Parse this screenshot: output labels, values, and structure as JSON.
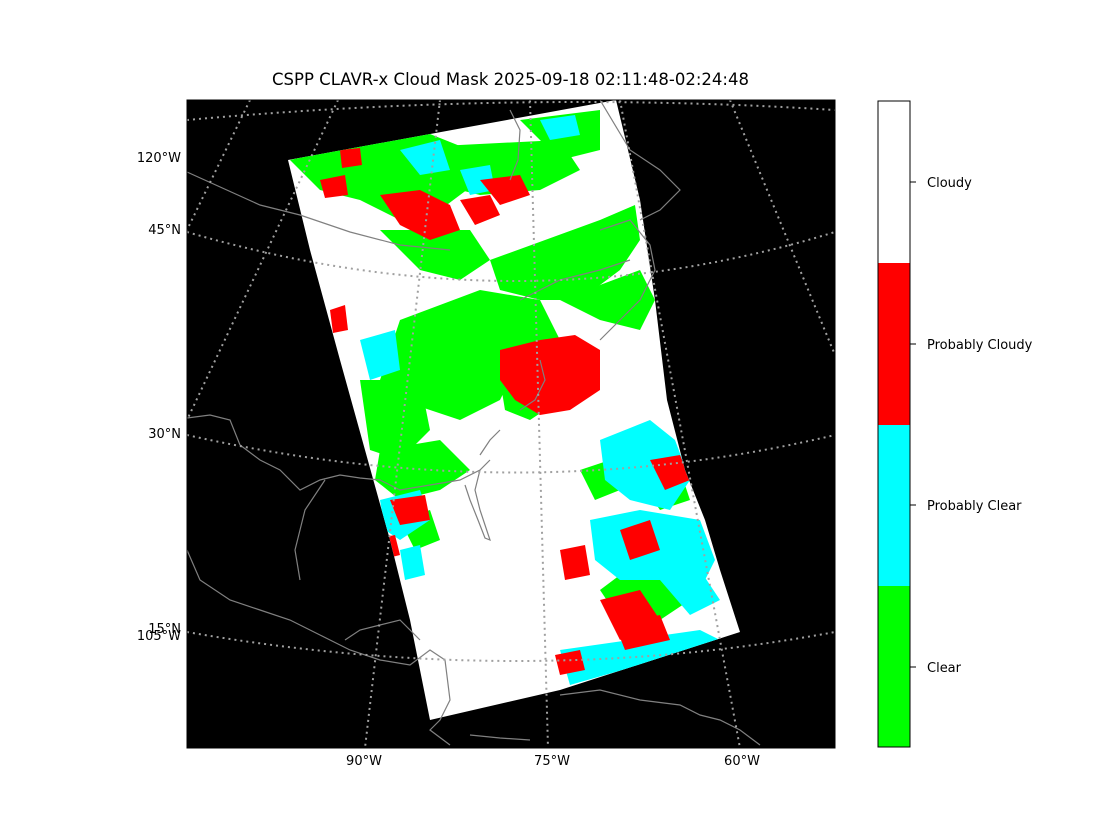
{
  "title": "CSPP CLAVR-x Cloud Mask 2025-09-18 02:11:48-02:24:48",
  "map": {
    "lat_labels": [
      "45°N",
      "30°N",
      "15°N"
    ],
    "lon_left_labels": [
      "120°W",
      "105°W"
    ],
    "lon_bottom_labels": [
      "90°W",
      "75°W",
      "60°W"
    ]
  },
  "colorbar": {
    "categories": [
      {
        "label": "Cloudy",
        "color": "#ffffff"
      },
      {
        "label": "Probably Cloudy",
        "color": "#ff0000"
      },
      {
        "label": "Probably Clear",
        "color": "#00ffff"
      },
      {
        "label": "Clear",
        "color": "#00ff00"
      }
    ]
  },
  "colors": {
    "background": "#000000",
    "coastline": "#808080",
    "gridline": "#a0a0a0"
  }
}
